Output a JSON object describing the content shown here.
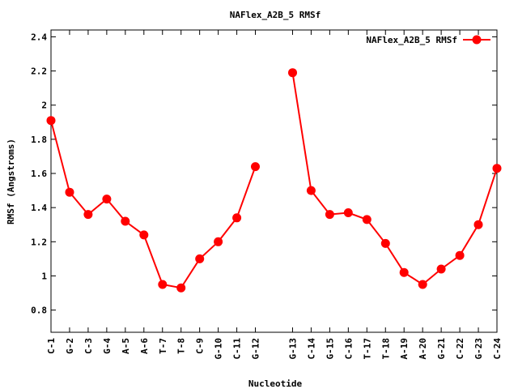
{
  "chart_data": {
    "type": "line",
    "title": "NAFlex_A2B_5 RMSf",
    "xlabel": "Nucleotide",
    "ylabel": "RMSf (Angstroms)",
    "ylim": [
      0.67,
      2.44
    ],
    "yticks": [
      0.8,
      1,
      1.2,
      1.4,
      1.6,
      1.8,
      2,
      2.2,
      2.4
    ],
    "ytick_labels": [
      "0.8",
      "1",
      "1.2",
      "1.4",
      "1.6",
      "1.8",
      "2",
      "2.2",
      "2.4"
    ],
    "legend_position": "top-right",
    "grid": false,
    "x": [
      1,
      2,
      3,
      4,
      5,
      6,
      7,
      8,
      9,
      10,
      11,
      12,
      14,
      15,
      16,
      17,
      18,
      19,
      20,
      21,
      22,
      23,
      24,
      25
    ],
    "xlim": [
      1,
      25
    ],
    "categories": [
      "C-1",
      "G-2",
      "C-3",
      "G-4",
      "A-5",
      "A-6",
      "T-7",
      "T-8",
      "C-9",
      "G-10",
      "C-11",
      "G-12",
      "G-13",
      "C-14",
      "G-15",
      "C-16",
      "T-17",
      "T-18",
      "A-19",
      "A-20",
      "G-21",
      "C-22",
      "G-23",
      "C-24"
    ],
    "series": [
      {
        "name": "NAFlex_A2B_5 RMSf",
        "color": "#ff0000",
        "segments": [
          [
            1.91,
            1.49,
            1.36,
            1.45,
            1.32,
            1.24,
            0.95,
            0.93,
            1.1,
            1.2,
            1.34,
            1.64
          ],
          [
            2.19,
            1.5,
            1.36,
            1.37,
            1.33,
            1.19,
            1.02,
            0.95,
            1.04,
            1.12,
            1.3,
            1.63
          ]
        ]
      }
    ]
  }
}
